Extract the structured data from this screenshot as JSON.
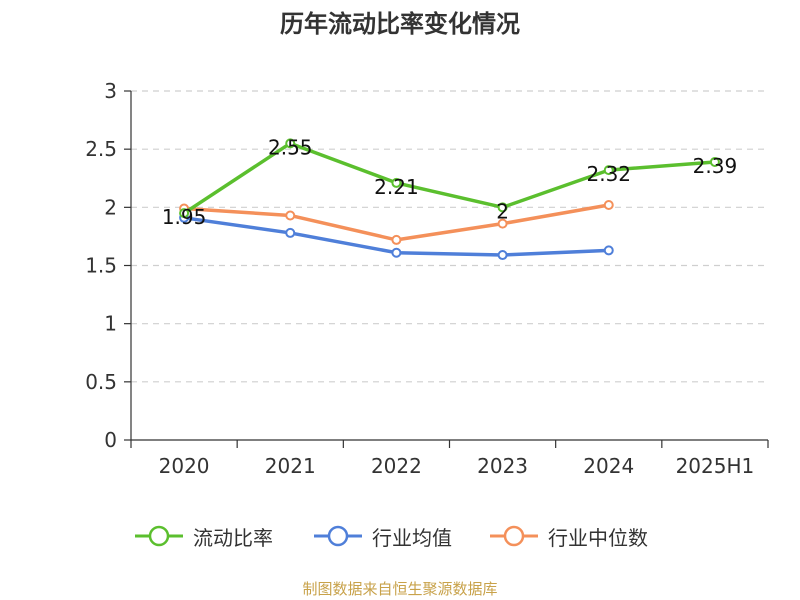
{
  "chart_data": {
    "type": "line",
    "title": "历年流动比率变化情况",
    "categories": [
      "2020",
      "2021",
      "2022",
      "2023",
      "2024",
      "2025H1"
    ],
    "yticks": [
      "0",
      "0.5",
      "1",
      "1.5",
      "2",
      "2.5",
      "3"
    ],
    "ylim": [
      0,
      3
    ],
    "grid": true,
    "legend_position": "bottom",
    "series": [
      {
        "name": "流动比率",
        "color": "#5bbf2e",
        "values": [
          1.95,
          2.55,
          2.21,
          2.0,
          2.32,
          2.39
        ],
        "labels": [
          "1.95",
          "2.55",
          "2.21",
          "2",
          "2.32",
          "2.39"
        ]
      },
      {
        "name": "行业均值",
        "color": "#4f7fd9",
        "values": [
          1.91,
          1.78,
          1.61,
          1.59,
          1.63,
          null
        ]
      },
      {
        "name": "行业中位数",
        "color": "#f4905a",
        "values": [
          1.99,
          1.93,
          1.72,
          1.86,
          2.02,
          null
        ]
      }
    ]
  },
  "source": "制图数据来自恒生聚源数据库"
}
